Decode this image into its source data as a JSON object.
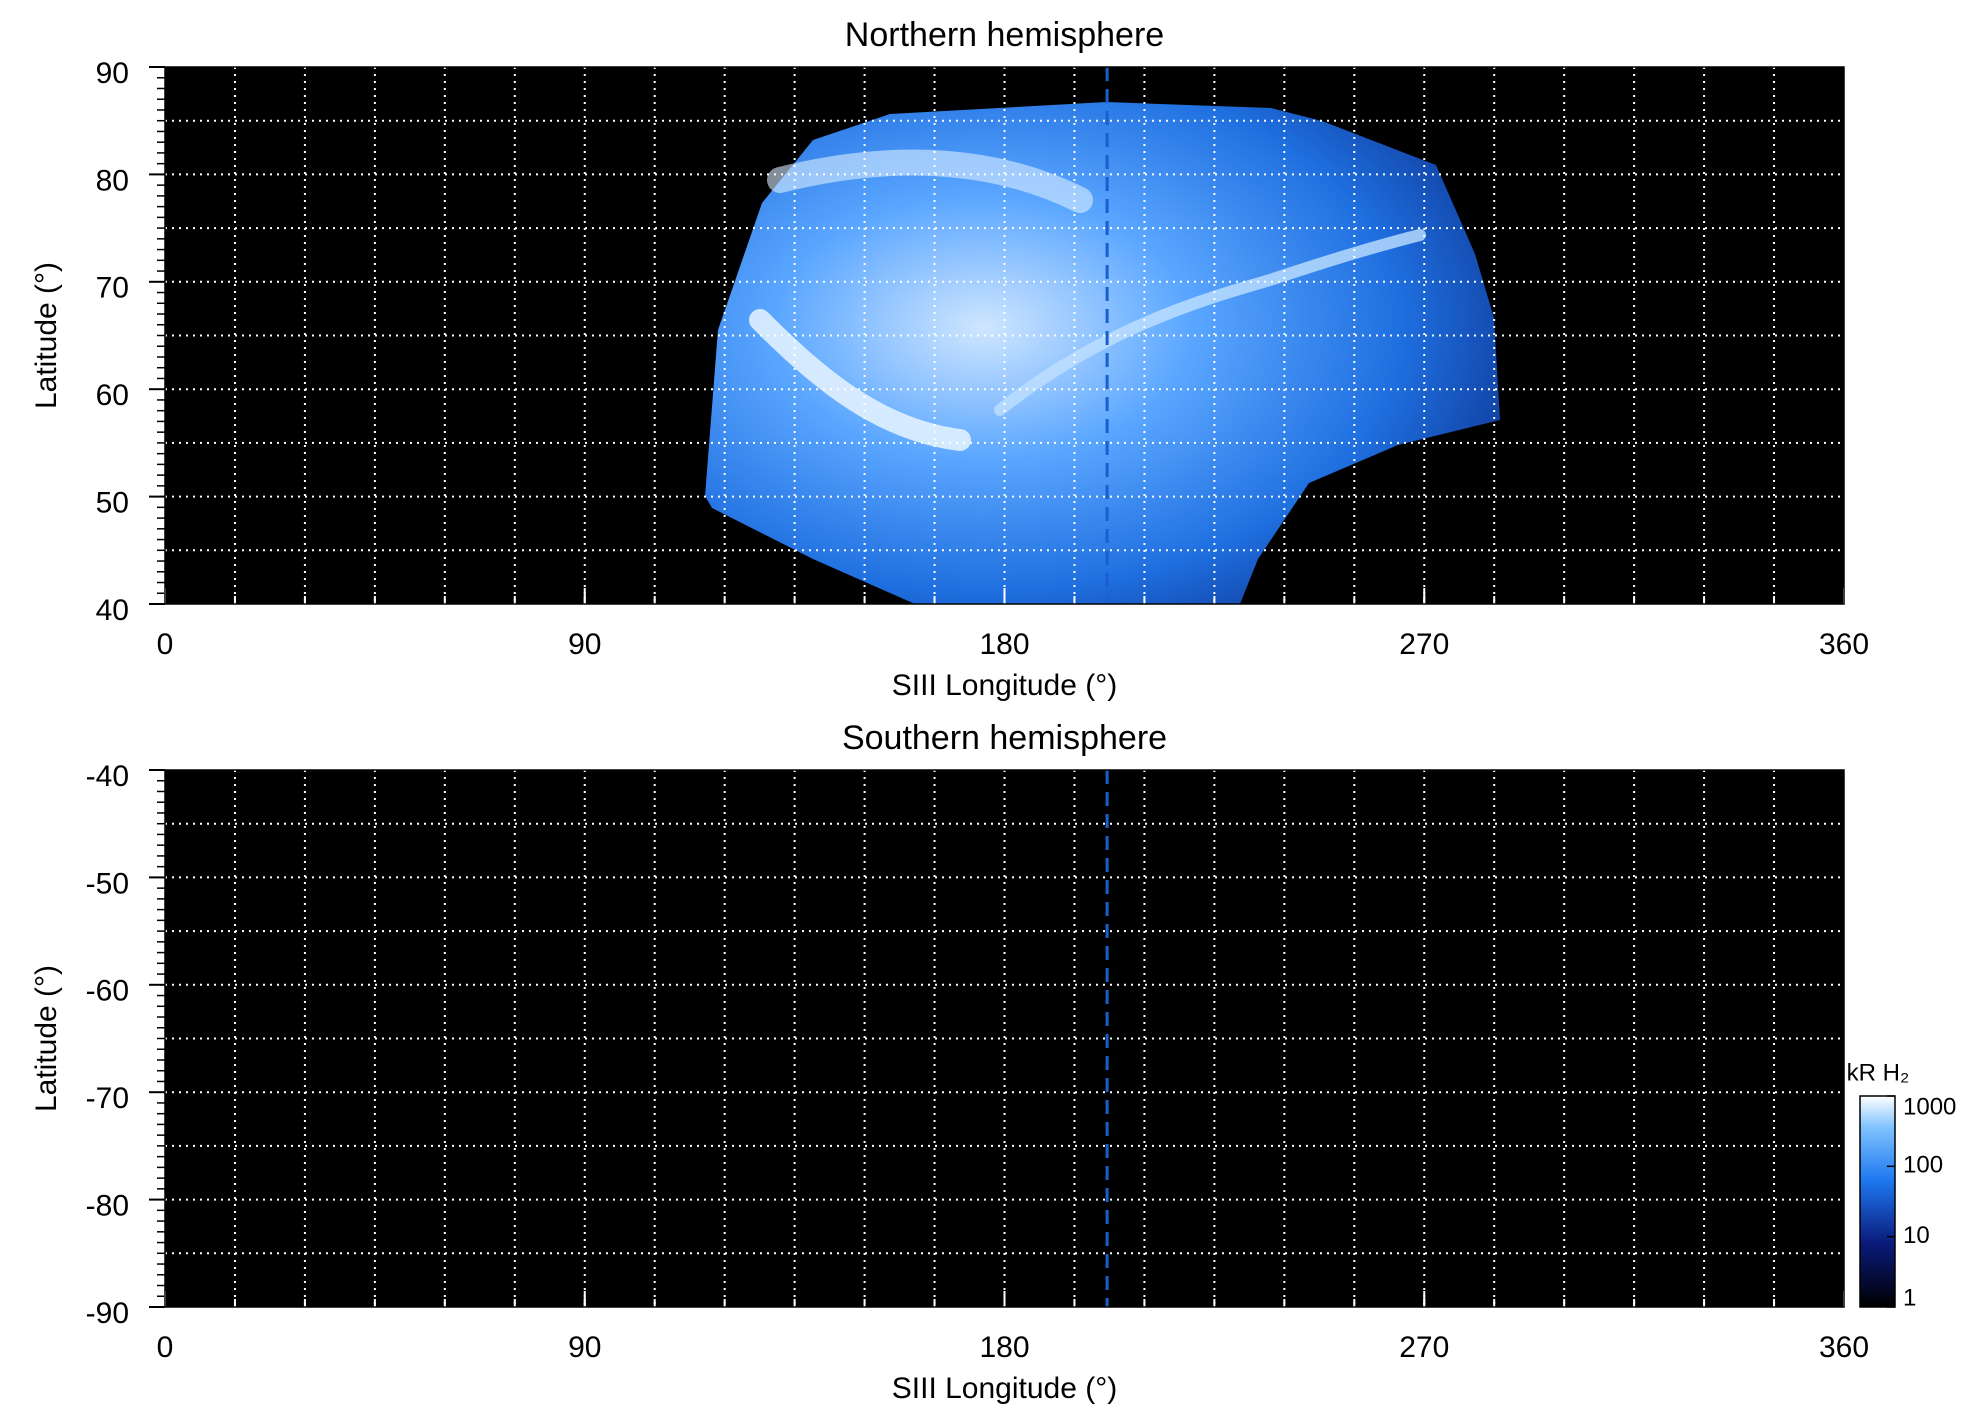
{
  "chart_data": [
    {
      "type": "map",
      "title": "Northern hemisphere",
      "xlabel": "SIII Longitude (°)",
      "ylabel": "Latitude (°)",
      "xlim": [
        0,
        360
      ],
      "xticks": [
        0,
        90,
        180,
        270,
        360
      ],
      "ylim": [
        40,
        90
      ],
      "yticks": [
        40,
        50,
        60,
        70,
        80,
        90
      ],
      "xgrid": [
        15,
        30,
        45,
        60,
        75,
        90,
        105,
        120,
        135,
        150,
        165,
        180,
        195,
        210,
        225,
        240,
        255,
        270,
        285,
        300,
        315,
        330,
        345
      ],
      "ygrid": [
        45,
        50,
        55,
        60,
        65,
        70,
        75,
        80,
        85
      ],
      "yminor_step": 1,
      "vline": 202,
      "vline_color": "#1a5fd0"
    },
    {
      "type": "map",
      "title": "Southern hemisphere",
      "xlabel": "SIII Longitude (°)",
      "ylabel": "Latitude (°)",
      "xlim": [
        0,
        360
      ],
      "xticks": [
        0,
        90,
        180,
        270,
        360
      ],
      "ylim": [
        -90,
        -40
      ],
      "yticks": [
        -90,
        -80,
        -70,
        -60,
        -50,
        -40
      ],
      "xgrid": [
        15,
        30,
        45,
        60,
        75,
        90,
        105,
        120,
        135,
        150,
        165,
        180,
        195,
        210,
        225,
        240,
        255,
        270,
        285,
        300,
        315,
        330,
        345
      ],
      "ygrid": [
        -85,
        -80,
        -75,
        -70,
        -65,
        -60,
        -55,
        -50,
        -45
      ],
      "yminor_step": 1,
      "vline": 202,
      "vline_color": "#1a5fd0",
      "colorbar": {
        "label": "kR H₂",
        "log": true,
        "lim": [
          1,
          1000
        ],
        "ticks": [
          1,
          10,
          100,
          1000
        ]
      }
    }
  ]
}
